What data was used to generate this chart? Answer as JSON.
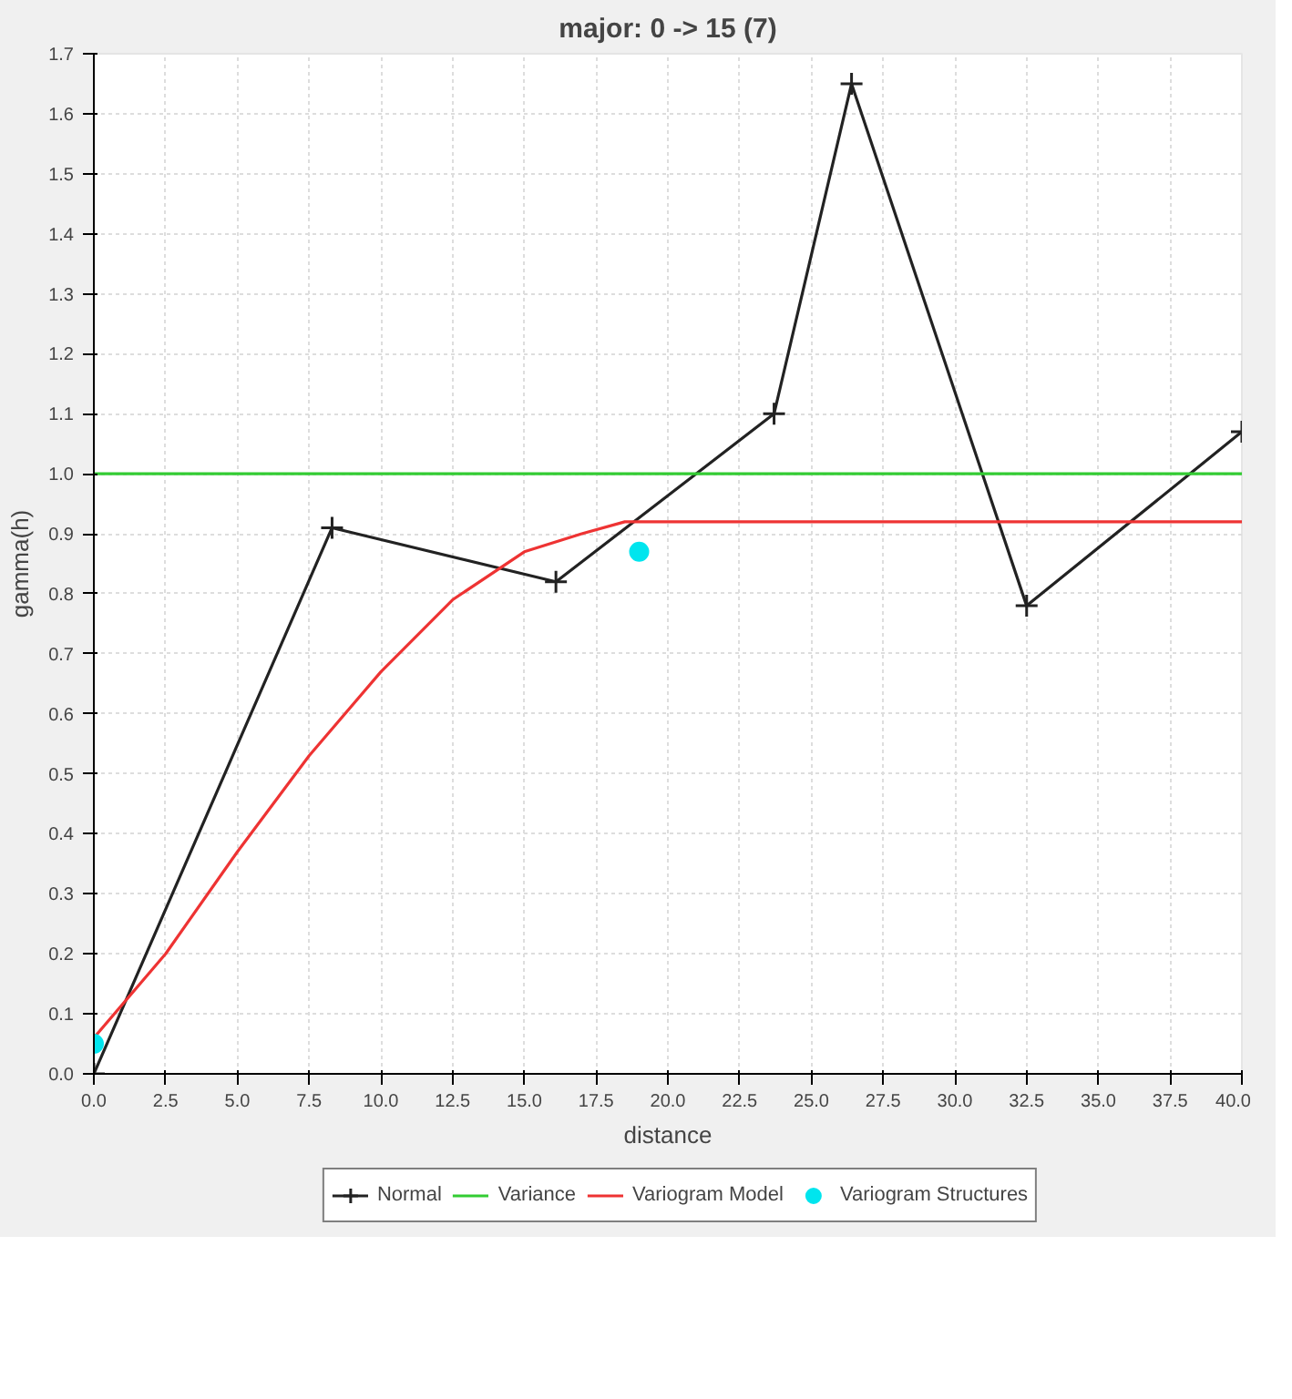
{
  "chart_data": {
    "type": "line",
    "title": "major: 0 -> 15 (7)",
    "xlabel": "distance",
    "ylabel": "gamma(h)",
    "xlim": [
      0,
      40
    ],
    "ylim": [
      0,
      1.7
    ],
    "xticks": [
      {
        "value": 0,
        "label": "0.0"
      },
      2.5,
      {
        "value": 5,
        "label": "5.0"
      },
      7.5,
      {
        "value": 10,
        "label": "10.0"
      },
      12.5,
      {
        "value": 15,
        "label": "15.0"
      },
      17.5,
      {
        "value": 20,
        "label": "20.0"
      },
      22.5,
      {
        "value": 25,
        "label": "25.0"
      },
      27.5,
      {
        "value": 30,
        "label": "30.0"
      },
      32.5,
      {
        "value": 35,
        "label": "35.0"
      },
      37.5,
      {
        "value": 40,
        "label": "40.0"
      }
    ],
    "yticks": [
      {
        "value": 0,
        "label": "0.0"
      },
      0.1,
      0.2,
      0.3,
      0.4,
      0.5,
      0.6,
      0.7,
      0.8,
      0.9,
      {
        "value": 1,
        "label": "1.0"
      },
      1.1,
      1.2,
      1.3,
      1.4,
      1.5,
      1.6,
      1.7
    ],
    "grid": true,
    "legend": "bottom",
    "series": [
      {
        "name": "Normal",
        "marker": "cross",
        "color": "#222222",
        "x": [
          0,
          8.3,
          16.1,
          23.7,
          26.4,
          32.5,
          40
        ],
        "values": [
          0,
          0.91,
          0.82,
          1.1,
          1.65,
          0.78,
          1.07
        ]
      },
      {
        "name": "Variance",
        "marker": "none",
        "color": "#33cc33",
        "x": [
          0,
          40
        ],
        "values": [
          1,
          1
        ]
      },
      {
        "name": "Variogram Model",
        "marker": "none",
        "color": "#ee3333",
        "x": [
          0,
          2.5,
          5,
          7.5,
          10,
          12.5,
          15,
          17,
          18.5,
          40
        ],
        "values": [
          0.06,
          0.2,
          0.37,
          0.53,
          0.67,
          0.79,
          0.87,
          0.9,
          0.92,
          0.92
        ]
      },
      {
        "name": "Variogram Structures",
        "type": "scatter",
        "marker": "circle",
        "color": "#00e5ee",
        "x": [
          0,
          19
        ],
        "values": [
          0.05,
          0.87
        ]
      }
    ]
  }
}
